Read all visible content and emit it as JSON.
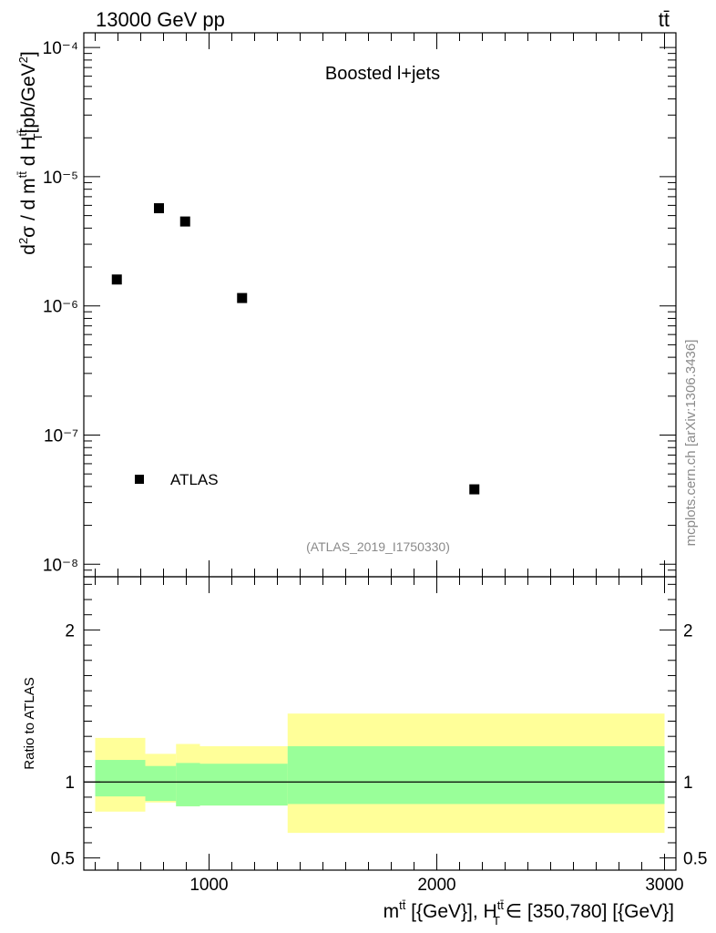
{
  "header": {
    "left": "13000 GeV pp",
    "right": "tt̄"
  },
  "chart_data": [
    {
      "type": "scatter",
      "panel": "main",
      "title": "Boosted l+jets",
      "subtitle": "(ATLAS_2019_I1750330)",
      "ylabel": "d²σ / d m^{tt̄} d H_T^{tt̄} [pb/GeV²]",
      "yscale": "log",
      "ylim": [
        8e-09,
        0.00013
      ],
      "xlim": [
        450,
        3050
      ],
      "y_tick_labels": [
        "10⁻⁸",
        "10⁻⁷",
        "10⁻⁶",
        "10⁻⁵",
        "10⁻⁴"
      ],
      "series": [
        {
          "name": "ATLAS",
          "marker": "square",
          "color": "#000000",
          "x": [
            595,
            780,
            895,
            1145,
            2165
          ],
          "y": [
            1.6e-06,
            5.7e-06,
            4.5e-06,
            1.15e-06,
            3.8e-08
          ]
        }
      ],
      "legend": {
        "position": "bottom-left",
        "entries": [
          "ATLAS"
        ]
      }
    },
    {
      "type": "area",
      "panel": "ratio",
      "ylabel": "Ratio to ATLAS",
      "xlabel": "m^{tt̄} [{GeV}], H_T^{tt̄} ∈ [350,780] [{GeV}]",
      "xlim": [
        450,
        3050
      ],
      "ylim": [
        0.42,
        2.35
      ],
      "x_ticks": [
        1000,
        2000,
        3000
      ],
      "y_ticks": [
        0.5,
        1,
        2
      ],
      "reference_line": 1.0,
      "bands": [
        {
          "x_low": 500,
          "x_high": 720,
          "inner": [
            0.905,
            1.145
          ],
          "outer": [
            0.805,
            1.29
          ]
        },
        {
          "x_low": 720,
          "x_high": 855,
          "inner": [
            0.875,
            1.105
          ],
          "outer": [
            0.865,
            1.185
          ]
        },
        {
          "x_low": 855,
          "x_high": 960,
          "inner": [
            0.84,
            1.125
          ],
          "outer": [
            0.84,
            1.25
          ]
        },
        {
          "x_low": 960,
          "x_high": 1345,
          "inner": [
            0.845,
            1.12
          ],
          "outer": [
            0.845,
            1.235
          ]
        },
        {
          "x_low": 1345,
          "x_high": 3000,
          "inner": [
            0.855,
            1.235
          ],
          "outer": [
            0.665,
            1.45
          ]
        }
      ],
      "inner_color": "#99ff99",
      "outer_color": "#ffff99"
    }
  ],
  "side_credit": "mcplots.cern.ch [arXiv:1306.3436]"
}
